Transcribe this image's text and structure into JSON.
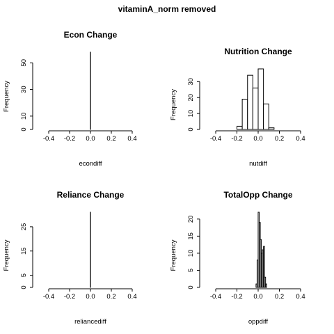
{
  "main_title": "vitaminA_norm removed",
  "chart_data": [
    {
      "type": "bar",
      "title": "Econ Change",
      "xlabel": "econdiff",
      "ylabel": "Frequency",
      "xlim": [
        -0.4,
        0.4
      ],
      "xticks": [
        "-0.4",
        "-0.2",
        "0.0",
        "0.2",
        "0.4"
      ],
      "ylim": [
        0,
        58
      ],
      "yticks": [
        "0",
        "10",
        "30",
        "50"
      ],
      "bins": [
        {
          "x0": -0.001,
          "x1": 0.001,
          "count": 58
        }
      ]
    },
    {
      "type": "bar",
      "title": "Nutrition Change",
      "xlabel": "nutdiff",
      "ylabel": "Frequency",
      "xlim": [
        -0.4,
        0.4
      ],
      "xticks": [
        "-0.4",
        "-0.2",
        "0.0",
        "0.2",
        "0.4"
      ],
      "ylim": [
        0,
        38
      ],
      "yticks": [
        "0",
        "10",
        "20",
        "30"
      ],
      "bins": [
        {
          "x0": -0.2,
          "x1": -0.15,
          "count": 2
        },
        {
          "x0": -0.15,
          "x1": -0.1,
          "count": 19
        },
        {
          "x0": -0.1,
          "x1": -0.05,
          "count": 34
        },
        {
          "x0": -0.05,
          "x1": 0.0,
          "count": 26
        },
        {
          "x0": 0.0,
          "x1": 0.05,
          "count": 38
        },
        {
          "x0": 0.05,
          "x1": 0.1,
          "count": 16
        },
        {
          "x0": 0.1,
          "x1": 0.15,
          "count": 1
        }
      ]
    },
    {
      "type": "bar",
      "title": "Reliance Change",
      "xlabel": "reliancediff",
      "ylabel": "Frequency",
      "xlim": [
        -0.4,
        0.4
      ],
      "xticks": [
        "-0.4",
        "-0.2",
        "0.0",
        "0.2",
        "0.4"
      ],
      "ylim": [
        0,
        31
      ],
      "yticks": [
        "0",
        "5",
        "15",
        "25"
      ],
      "bins": [
        {
          "x0": -0.001,
          "x1": 0.001,
          "count": 31
        }
      ]
    },
    {
      "type": "bar",
      "title": "TotalOpp Change",
      "xlabel": "oppdiff",
      "ylabel": "Frequency",
      "xlim": [
        -0.4,
        0.4
      ],
      "xticks": [
        "-0.4",
        "-0.2",
        "0.0",
        "0.2",
        "0.4"
      ],
      "ylim": [
        0,
        22
      ],
      "yticks": [
        "0",
        "5",
        "10",
        "15",
        "20"
      ],
      "bins": [
        {
          "x0": -0.02,
          "x1": -0.01,
          "count": 1
        },
        {
          "x0": -0.01,
          "x1": 0.0,
          "count": 8
        },
        {
          "x0": 0.0,
          "x1": 0.01,
          "count": 22
        },
        {
          "x0": 0.01,
          "x1": 0.02,
          "count": 19
        },
        {
          "x0": 0.02,
          "x1": 0.03,
          "count": 14
        },
        {
          "x0": 0.03,
          "x1": 0.04,
          "count": 10
        },
        {
          "x0": 0.04,
          "x1": 0.05,
          "count": 11
        },
        {
          "x0": 0.05,
          "x1": 0.06,
          "count": 12
        },
        {
          "x0": 0.06,
          "x1": 0.07,
          "count": 3
        },
        {
          "x0": 0.07,
          "x1": 0.08,
          "count": 1
        }
      ]
    }
  ]
}
